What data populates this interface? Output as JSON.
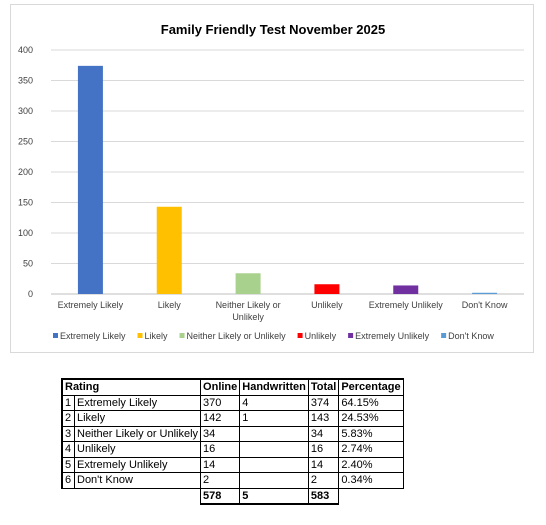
{
  "chart_data": {
    "type": "bar",
    "title": "Family Friendly Test November 2025",
    "categories": [
      "Extremely Likely",
      "Likely",
      "Neither Likely or Unlikely",
      "Unlikely",
      "Extremely Unlikely",
      "Don't Know"
    ],
    "values": [
      374,
      143,
      34,
      16,
      14,
      2
    ],
    "colors": [
      "#4472c4",
      "#ffc000",
      "#a9d18e",
      "#ff0000",
      "#7030a0",
      "#5b9bd5"
    ],
    "ylim": [
      0,
      400
    ],
    "yticks": [
      0,
      50,
      100,
      150,
      200,
      250,
      300,
      350,
      400
    ],
    "grid": true,
    "legend_position": "bottom"
  },
  "table": {
    "headers": [
      "Rating",
      "Online",
      "Handwritten",
      "Total",
      "Percentage"
    ],
    "rows": [
      {
        "n": "1",
        "rating": "Extremely Likely",
        "online": "370",
        "handwritten": "4",
        "total": "374",
        "percentage": "64.15%"
      },
      {
        "n": "2",
        "rating": "Likely",
        "online": "142",
        "handwritten": "1",
        "total": "143",
        "percentage": "24.53%"
      },
      {
        "n": "3",
        "rating": "Neither Likely or Unlikely",
        "online": "34",
        "handwritten": "",
        "total": "34",
        "percentage": "5.83%"
      },
      {
        "n": "4",
        "rating": "Unlikely",
        "online": "16",
        "handwritten": "",
        "total": "16",
        "percentage": "2.74%"
      },
      {
        "n": "5",
        "rating": "Extremely Unlikely",
        "online": "14",
        "handwritten": "",
        "total": "14",
        "percentage": "2.40%"
      },
      {
        "n": "6",
        "rating": "Don't Know",
        "online": "2",
        "handwritten": "",
        "total": "2",
        "percentage": "0.34%"
      }
    ],
    "totals": {
      "online": "578",
      "handwritten": "5",
      "total": "583"
    }
  }
}
